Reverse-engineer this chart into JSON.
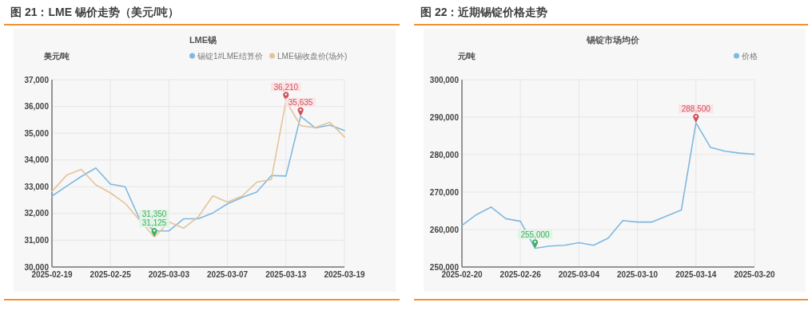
{
  "chart_data": [
    {
      "type": "line",
      "title": "图 21：LME 锡价走势（美元/吨）",
      "subtitle": "LME锡",
      "ylabel": "美元/吨",
      "categories": [
        "2025-02-19",
        null,
        null,
        null,
        "2025-02-25",
        null,
        null,
        null,
        "2025-03-03",
        null,
        null,
        null,
        "2025-03-07",
        null,
        null,
        null,
        "2025-03-13",
        null,
        null,
        null,
        "2025-03-19"
      ],
      "series": [
        {
          "name": "锡锭1#LME结算价",
          "color": "#7fb8e0",
          "values": [
            32650,
            33020,
            33380,
            33700,
            33100,
            33000,
            31780,
            31350,
            31350,
            31800,
            31800,
            32020,
            32360,
            32600,
            32800,
            33420,
            33400,
            35635,
            35200,
            35300,
            35100
          ],
          "value_labels": [
            null,
            null,
            null,
            null,
            null,
            null,
            null,
            "31,350",
            null,
            null,
            null,
            null,
            null,
            null,
            null,
            null,
            null,
            "35,635",
            null,
            null,
            null
          ]
        },
        {
          "name": "LME锡收盘价(场外)",
          "color": "#e3c49b",
          "values": [
            32820,
            33430,
            33650,
            33070,
            32770,
            32380,
            31740,
            31125,
            31680,
            31450,
            31870,
            32660,
            32430,
            32650,
            33170,
            33270,
            36210,
            35280,
            35210,
            35410,
            34860
          ],
          "value_labels": [
            null,
            null,
            null,
            null,
            null,
            null,
            null,
            "31,125",
            null,
            null,
            null,
            null,
            null,
            null,
            null,
            null,
            "36,210",
            null,
            null,
            null,
            null
          ]
        }
      ],
      "ylim": [
        30000,
        37000
      ],
      "yticks": [
        {
          "value": 30000,
          "label": "30,000"
        },
        {
          "value": 31000,
          "label": "31,000"
        },
        {
          "value": 32000,
          "label": "32,000"
        },
        {
          "value": 33000,
          "label": "33,000"
        },
        {
          "value": 34000,
          "label": "34,000"
        },
        {
          "value": 35000,
          "label": "35,000"
        },
        {
          "value": 36000,
          "label": "36,000"
        },
        {
          "value": 37000,
          "label": "37,000"
        }
      ],
      "grid": true,
      "legend": "top right"
    },
    {
      "type": "line",
      "title": "图 22：近期锡锭价格走势",
      "subtitle": "锡锭市场均价",
      "ylabel": "元/吨",
      "categories": [
        "2025-02-20",
        null,
        null,
        null,
        "2025-02-26",
        null,
        null,
        null,
        "2025-03-04",
        null,
        null,
        null,
        "2025-03-10",
        null,
        null,
        null,
        "2025-03-14",
        null,
        null,
        null,
        "2025-03-20"
      ],
      "series": [
        {
          "name": "价格",
          "color": "#7fb8e0",
          "values": [
            261100,
            264000,
            266000,
            262900,
            262200,
            255000,
            255600,
            255800,
            256500,
            255800,
            257700,
            262400,
            262000,
            262000,
            263600,
            265200,
            288500,
            281900,
            280900,
            280400,
            280100
          ],
          "value_labels": [
            null,
            null,
            null,
            null,
            null,
            "255,000",
            null,
            null,
            null,
            null,
            null,
            null,
            null,
            null,
            null,
            null,
            "288,500",
            null,
            null,
            null,
            null
          ]
        }
      ],
      "ylim": [
        250000,
        300000
      ],
      "yticks": [
        {
          "value": 250000,
          "label": "250,000"
        },
        {
          "value": 260000,
          "label": "260,000"
        },
        {
          "value": 270000,
          "label": "270,000"
        },
        {
          "value": 280000,
          "label": "280,000"
        },
        {
          "value": 290000,
          "label": "290,000"
        },
        {
          "value": 300000,
          "label": "300,000"
        }
      ],
      "grid": true,
      "legend": "top right"
    }
  ]
}
